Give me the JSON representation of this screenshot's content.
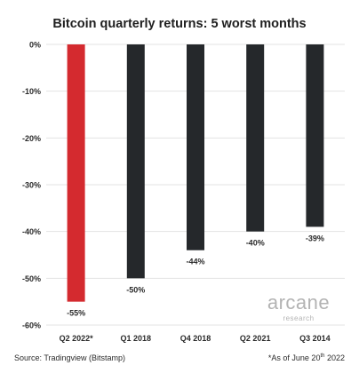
{
  "chart_data": {
    "type": "bar",
    "title": "Bitcoin quarterly returns: 5 worst months",
    "categories": [
      "Q2 2022*",
      "Q1 2018",
      "Q4 2018",
      "Q2 2021",
      "Q3 2014"
    ],
    "values": [
      -55,
      -50,
      -44,
      -40,
      -39
    ],
    "data_labels": [
      "-55%",
      "-50%",
      "-44%",
      "-40%",
      "-39%"
    ],
    "ylim": [
      -60,
      0
    ],
    "yticks": [
      0,
      -10,
      -20,
      -30,
      -40,
      -50,
      -60
    ],
    "ytick_labels": [
      "0%",
      "-10%",
      "-20%",
      "-30%",
      "-40%",
      "-50%",
      "-60%"
    ],
    "xlabel": "",
    "ylabel": "",
    "grid": true,
    "colors": {
      "highlight": "#d42a2f",
      "default": "#25282b",
      "grid": "#e3e3e3"
    },
    "highlight_index": 0
  },
  "footer": {
    "source": "Source: Tradingview (Bitstamp)",
    "date_note_prefix": "*As of June 20",
    "date_note_sup": "th",
    "date_note_suffix": " 2022"
  },
  "brand": {
    "name": "arcane",
    "sub": "research"
  }
}
